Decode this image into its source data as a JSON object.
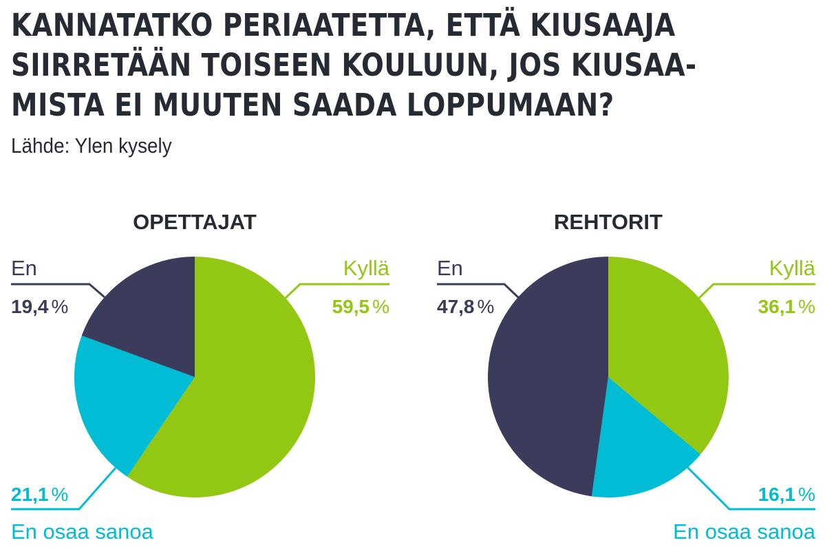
{
  "header": {
    "title_lines": [
      "KANNATATKO PERIAATETTA, ETTÄ KIUSAAJA",
      "SIIRRETÄÄN TOISEEN KOULUUN, JOS KIUSAA-",
      "MISTA EI MUUTEN SAADA LOPPUMAAN?"
    ],
    "source": "Lähde: Ylen kysely"
  },
  "colors": {
    "kylla": "#92c713",
    "en": "#3b3b5c",
    "eos": "#00bcd4",
    "text": "#262a33"
  },
  "chart_data": [
    {
      "type": "pie",
      "title": "OPETTAJAT",
      "slices": [
        {
          "key": "kylla",
          "label": "Kyllä",
          "value": 59.5,
          "display": "59,5",
          "unit": "%"
        },
        {
          "key": "eos",
          "label": "En osaa sanoa",
          "value": 21.1,
          "display": "21,1",
          "unit": "%"
        },
        {
          "key": "en",
          "label": "En",
          "value": 19.4,
          "display": "19,4",
          "unit": "%"
        }
      ]
    },
    {
      "type": "pie",
      "title": "REHTORIT",
      "slices": [
        {
          "key": "kylla",
          "label": "Kyllä",
          "value": 36.1,
          "display": "36,1",
          "unit": "%"
        },
        {
          "key": "eos",
          "label": "En osaa sanoa",
          "value": 16.1,
          "display": "16,1",
          "unit": "%"
        },
        {
          "key": "en",
          "label": "En",
          "value": 47.8,
          "display": "47,8",
          "unit": "%"
        }
      ]
    }
  ]
}
